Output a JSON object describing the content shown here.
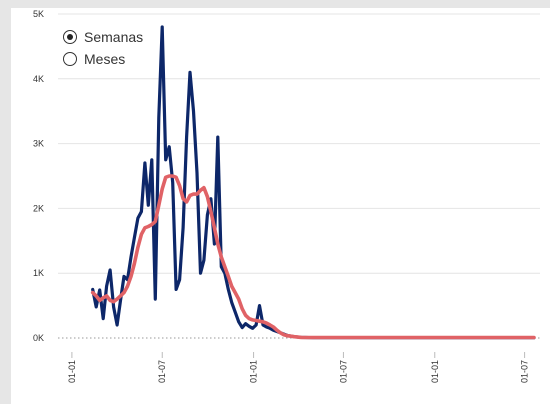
{
  "toggle": {
    "options": [
      {
        "label": "Semanas",
        "selected": true
      },
      {
        "label": "Meses",
        "selected": false
      }
    ]
  },
  "chart_data": {
    "type": "line",
    "title": "",
    "xlabel": "",
    "ylabel": "",
    "ylim": [
      0,
      5000
    ],
    "grid": true,
    "y_ticks": [
      {
        "value": 0,
        "label": "0K"
      },
      {
        "value": 1000,
        "label": "1K"
      },
      {
        "value": 2000,
        "label": "2K"
      },
      {
        "value": 3000,
        "label": "3K"
      },
      {
        "value": 4000,
        "label": "4K"
      },
      {
        "value": 5000,
        "label": "5K"
      }
    ],
    "x_ticks": [
      {
        "value": "2020-01-01",
        "label": "01-01"
      },
      {
        "value": "2020-07-01",
        "label": "01-07"
      },
      {
        "value": "2021-01-01",
        "label": "01-01"
      },
      {
        "value": "2021-07-01",
        "label": "01-07"
      },
      {
        "value": "2022-01-01",
        "label": "01-01"
      },
      {
        "value": "2022-07-01",
        "label": "01-07"
      }
    ],
    "xlim": [
      "2019-12-04",
      "2022-08-01"
    ],
    "series": [
      {
        "color": "#0d2769",
        "points": [
          [
            "2020-02-12",
            750
          ],
          [
            "2020-02-19",
            480
          ],
          [
            "2020-02-26",
            740
          ],
          [
            "2020-03-04",
            300
          ],
          [
            "2020-03-11",
            800
          ],
          [
            "2020-03-18",
            1050
          ],
          [
            "2020-03-25",
            480
          ],
          [
            "2020-04-01",
            200
          ],
          [
            "2020-04-08",
            580
          ],
          [
            "2020-04-15",
            950
          ],
          [
            "2020-04-22",
            900
          ],
          [
            "2020-04-29",
            1250
          ],
          [
            "2020-05-06",
            1550
          ],
          [
            "2020-05-13",
            1850
          ],
          [
            "2020-05-20",
            1950
          ],
          [
            "2020-05-27",
            2700
          ],
          [
            "2020-06-03",
            2050
          ],
          [
            "2020-06-10",
            2750
          ],
          [
            "2020-06-17",
            600
          ],
          [
            "2020-06-24",
            3400
          ],
          [
            "2020-07-01",
            4800
          ],
          [
            "2020-07-08",
            2750
          ],
          [
            "2020-07-15",
            2950
          ],
          [
            "2020-07-22",
            2400
          ],
          [
            "2020-07-29",
            750
          ],
          [
            "2020-08-05",
            900
          ],
          [
            "2020-08-12",
            1700
          ],
          [
            "2020-08-19",
            3100
          ],
          [
            "2020-08-26",
            4100
          ],
          [
            "2020-09-02",
            3500
          ],
          [
            "2020-09-09",
            2550
          ],
          [
            "2020-09-16",
            1000
          ],
          [
            "2020-09-23",
            1200
          ],
          [
            "2020-09-30",
            1900
          ],
          [
            "2020-10-07",
            2150
          ],
          [
            "2020-10-14",
            1450
          ],
          [
            "2020-10-21",
            3100
          ],
          [
            "2020-10-28",
            1100
          ],
          [
            "2020-11-04",
            1000
          ],
          [
            "2020-11-11",
            750
          ],
          [
            "2020-11-18",
            550
          ],
          [
            "2020-11-25",
            400
          ],
          [
            "2020-12-02",
            250
          ],
          [
            "2020-12-09",
            160
          ],
          [
            "2020-12-16",
            220
          ],
          [
            "2020-12-23",
            180
          ],
          [
            "2020-12-30",
            150
          ],
          [
            "2021-01-06",
            200
          ],
          [
            "2021-01-13",
            500
          ],
          [
            "2021-01-20",
            200
          ],
          [
            "2021-01-27",
            170
          ],
          [
            "2021-02-03",
            150
          ],
          [
            "2021-02-10",
            120
          ],
          [
            "2021-02-17",
            100
          ],
          [
            "2021-02-24",
            80
          ],
          [
            "2021-03-03",
            60
          ],
          [
            "2021-03-10",
            40
          ],
          [
            "2021-03-24",
            20
          ],
          [
            "2021-04-07",
            10
          ],
          [
            "2021-05-01",
            5
          ],
          [
            "2021-06-01",
            5
          ],
          [
            "2021-07-01",
            5
          ],
          [
            "2021-09-01",
            5
          ],
          [
            "2021-11-01",
            5
          ],
          [
            "2022-01-01",
            5
          ],
          [
            "2022-03-01",
            5
          ],
          [
            "2022-05-01",
            5
          ],
          [
            "2022-07-20",
            5
          ]
        ]
      },
      {
        "color": "#e06266",
        "points": [
          [
            "2020-02-12",
            700
          ],
          [
            "2020-02-19",
            650
          ],
          [
            "2020-02-26",
            580
          ],
          [
            "2020-03-04",
            620
          ],
          [
            "2020-03-11",
            650
          ],
          [
            "2020-03-18",
            580
          ],
          [
            "2020-03-25",
            560
          ],
          [
            "2020-04-01",
            600
          ],
          [
            "2020-04-08",
            650
          ],
          [
            "2020-04-15",
            700
          ],
          [
            "2020-04-22",
            800
          ],
          [
            "2020-04-29",
            950
          ],
          [
            "2020-05-06",
            1150
          ],
          [
            "2020-05-13",
            1400
          ],
          [
            "2020-05-20",
            1600
          ],
          [
            "2020-05-27",
            1700
          ],
          [
            "2020-06-03",
            1720
          ],
          [
            "2020-06-10",
            1750
          ],
          [
            "2020-06-17",
            1800
          ],
          [
            "2020-06-24",
            2050
          ],
          [
            "2020-07-01",
            2300
          ],
          [
            "2020-07-08",
            2480
          ],
          [
            "2020-07-15",
            2500
          ],
          [
            "2020-07-22",
            2500
          ],
          [
            "2020-07-29",
            2480
          ],
          [
            "2020-08-05",
            2350
          ],
          [
            "2020-08-12",
            2150
          ],
          [
            "2020-08-19",
            2100
          ],
          [
            "2020-08-26",
            2200
          ],
          [
            "2020-09-02",
            2220
          ],
          [
            "2020-09-09",
            2220
          ],
          [
            "2020-09-16",
            2280
          ],
          [
            "2020-09-23",
            2320
          ],
          [
            "2020-09-30",
            2180
          ],
          [
            "2020-10-07",
            1950
          ],
          [
            "2020-10-14",
            1700
          ],
          [
            "2020-10-21",
            1450
          ],
          [
            "2020-10-28",
            1250
          ],
          [
            "2020-11-04",
            1100
          ],
          [
            "2020-11-11",
            950
          ],
          [
            "2020-11-18",
            800
          ],
          [
            "2020-11-25",
            700
          ],
          [
            "2020-12-02",
            600
          ],
          [
            "2020-12-09",
            450
          ],
          [
            "2020-12-16",
            350
          ],
          [
            "2020-12-23",
            300
          ],
          [
            "2020-12-30",
            280
          ],
          [
            "2021-01-06",
            270
          ],
          [
            "2021-01-13",
            260
          ],
          [
            "2021-01-20",
            250
          ],
          [
            "2021-01-27",
            230
          ],
          [
            "2021-02-03",
            200
          ],
          [
            "2021-02-10",
            170
          ],
          [
            "2021-02-17",
            120
          ],
          [
            "2021-02-24",
            80
          ],
          [
            "2021-03-03",
            50
          ],
          [
            "2021-03-10",
            35
          ],
          [
            "2021-03-24",
            20
          ],
          [
            "2021-04-07",
            10
          ],
          [
            "2021-05-01",
            8
          ],
          [
            "2021-06-01",
            8
          ],
          [
            "2021-07-01",
            8
          ],
          [
            "2021-09-01",
            8
          ],
          [
            "2021-11-01",
            8
          ],
          [
            "2022-01-01",
            8
          ],
          [
            "2022-03-01",
            8
          ],
          [
            "2022-05-01",
            8
          ],
          [
            "2022-07-20",
            8
          ]
        ]
      }
    ],
    "legend": "none"
  }
}
